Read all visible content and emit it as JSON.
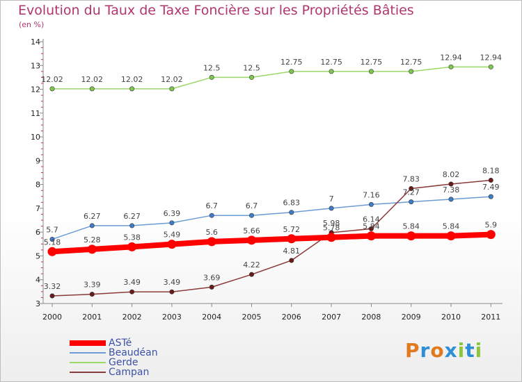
{
  "title": "Evolution du Taux de Taxe Foncière sur les Propriétés Bâties",
  "subtitle": "(en %)",
  "logo": {
    "letters": [
      "P",
      "r",
      "o",
      "x",
      "i",
      "t",
      "i"
    ],
    "colors": [
      "#e07a1f",
      "#2e8fd6",
      "#e07a1f",
      "#2e8fd6",
      "#8cc63f",
      "#2e8fd6",
      "#8cc63f"
    ]
  },
  "chart_data": {
    "type": "line",
    "x": [
      "2000",
      "2001",
      "2002",
      "2003",
      "2004",
      "2005",
      "2006",
      "2007",
      "2008",
      "2009",
      "2010",
      "2011"
    ],
    "ylim": [
      3,
      14
    ],
    "yticks": [
      "3",
      "4",
      "5",
      "6",
      "7",
      "8",
      "9",
      "10",
      "11",
      "12",
      "13",
      "14"
    ],
    "grid": false,
    "legend_position": "bottom-left",
    "series": [
      {
        "name": "ASTé",
        "color": "#ff0000",
        "marker": "#ff0000",
        "values": [
          5.18,
          5.28,
          5.38,
          5.49,
          5.6,
          5.66,
          5.72,
          5.78,
          5.84,
          5.84,
          5.84,
          5.9
        ],
        "labels": [
          "5.18",
          "5.28",
          "5.38",
          "5.49",
          "5.6",
          "5.66",
          "5.72",
          "5.78",
          "5.84",
          "5.84",
          "5.84",
          "5.9"
        ]
      },
      {
        "name": "Beaudéan",
        "color": "#6b9bd2",
        "marker": "#3d7dc9",
        "values": [
          5.7,
          6.27,
          6.27,
          6.39,
          6.7,
          6.7,
          6.83,
          7,
          7.16,
          7.27,
          7.38,
          7.49
        ],
        "labels": [
          "5.7",
          "6.27",
          "6.27",
          "6.39",
          "6.7",
          "6.7",
          "6.83",
          "7",
          "7.16",
          "7.27",
          "7.38",
          "7.49"
        ]
      },
      {
        "name": "Gerde",
        "color": "#9ad86a",
        "marker": "#7ec850",
        "values": [
          12.02,
          12.02,
          12.02,
          12.02,
          12.5,
          12.5,
          12.75,
          12.75,
          12.75,
          12.75,
          12.94,
          12.94
        ],
        "labels": [
          "12.02",
          "12.02",
          "12.02",
          "12.02",
          "12.5",
          "12.5",
          "12.75",
          "12.75",
          "12.75",
          "12.75",
          "12.94",
          "12.94"
        ]
      },
      {
        "name": "Campan",
        "color": "#8b3a3a",
        "marker": "#6b1a1a",
        "values": [
          3.32,
          3.39,
          3.49,
          3.49,
          3.69,
          4.22,
          4.81,
          5.98,
          6.14,
          7.83,
          8.02,
          8.18
        ],
        "labels": [
          "3.32",
          "3.39",
          "3.49",
          "3.49",
          "3.69",
          "4.22",
          "4.81",
          "5.98",
          "6.14",
          "7.83",
          "8.02",
          "8.18"
        ]
      }
    ]
  }
}
